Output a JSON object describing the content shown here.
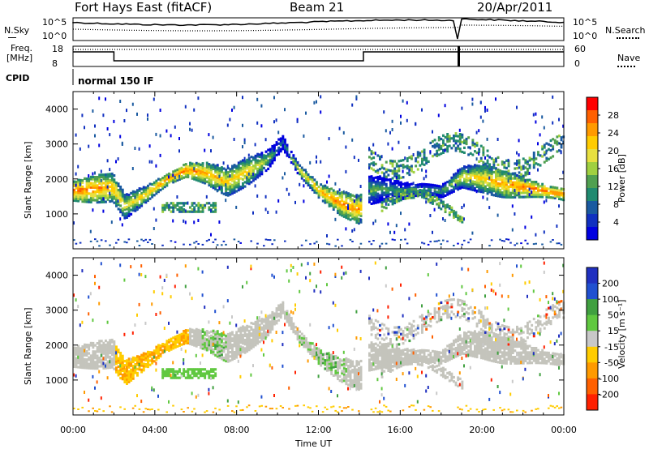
{
  "header": {
    "station": "Fort Hays East (fitACF)",
    "beam": "Beam 21",
    "date": "20/Apr/2011"
  },
  "summary": {
    "nsky_label": "N.Sky",
    "nsearch_label": "N.Search",
    "nsky_ticks": [
      "10^5",
      "10^0"
    ],
    "freq_label": "Freq.",
    "freq_unit": "[MHz]",
    "freq_ticks": [
      "18",
      "8"
    ],
    "nave_label": "Nave",
    "nave_ticks": [
      "60",
      "0"
    ],
    "cpid_label": "CPID",
    "cpid_text": "normal 150 IF"
  },
  "x_axis": {
    "label": "Time UT",
    "ticks": [
      "00:00",
      "04:00",
      "08:00",
      "12:00",
      "16:00",
      "20:00",
      "00:00"
    ],
    "range_hours": [
      0,
      24
    ]
  },
  "power_panel": {
    "ylabel": "Slant Range [km]",
    "yticks": [
      "4000",
      "3000",
      "2000",
      "1000"
    ],
    "ylim": [
      0,
      4500
    ],
    "colorbar_label": "Power [dB]",
    "colorbar_ticks": [
      "28",
      "24",
      "20",
      "16",
      "12",
      "8",
      "4"
    ],
    "colorbar_colors": [
      "#ff0000",
      "#ff6000",
      "#ff9a00",
      "#ffcc00",
      "#e8e040",
      "#a0d040",
      "#50a050",
      "#208a70",
      "#1a5aa0",
      "#1030c0",
      "#0000e0"
    ]
  },
  "velocity_panel": {
    "ylabel": "Slant Range [km]",
    "yticks": [
      "4000",
      "3000",
      "2000",
      "1000"
    ],
    "ylim": [
      0,
      4500
    ],
    "colorbar_label": "Velocity [m s⁻¹]",
    "colorbar_ticks": [
      "200",
      "100",
      "50",
      "15",
      "-15",
      "-50",
      "-100",
      "-200"
    ],
    "colorbar_colors": [
      "#2030c0",
      "#2050d0",
      "#40a040",
      "#60c840",
      "#c8c8c8",
      "#ffcc00",
      "#ff9a00",
      "#ff6000",
      "#ff2000"
    ],
    "ground_scatter_color": "#c4c4bc"
  },
  "chart_data": {
    "type": "heatmap",
    "title": "Fort Hays East (fitACF)",
    "xlabel": "Time UT",
    "ylabel": "Slant Range [km]",
    "xlim_hours": [
      0,
      24
    ],
    "ylim_km": [
      0,
      4500
    ],
    "scatter_band": {
      "hours": [
        0.0,
        1.0,
        1.9,
        2.5,
        3.5,
        4.5,
        5.5,
        6.5,
        7.5,
        8.5,
        9.5,
        10.2,
        11.0,
        12.0,
        13.0,
        14.0,
        14.3,
        15.0,
        16.0,
        17.0,
        18.0,
        19.0,
        20.0,
        21.0,
        22.0,
        23.0,
        24.0
      ],
      "center_km": [
        1700,
        1750,
        1800,
        1250,
        1600,
        2000,
        2300,
        2200,
        1950,
        2250,
        2600,
        3100,
        2300,
        1700,
        1350,
        1150,
        1700,
        1750,
        1700,
        1750,
        1700,
        2100,
        2050,
        1900,
        1800,
        1700,
        1600
      ],
      "power_db": [
        27,
        26,
        24,
        20,
        22,
        26,
        27,
        24,
        22,
        22,
        16,
        10,
        20,
        24,
        26,
        25,
        16,
        14,
        12,
        13,
        14,
        20,
        22,
        24,
        26,
        27,
        26
      ]
    }
  }
}
